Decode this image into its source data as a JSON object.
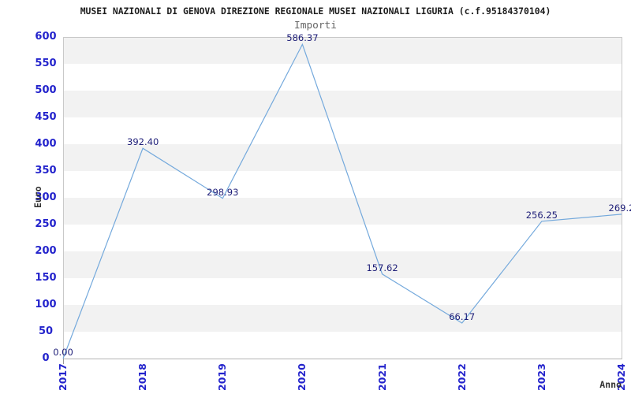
{
  "header": {
    "title": "MUSEI NAZIONALI DI GENOVA DIREZIONE REGIONALE MUSEI NAZIONALI LIGURIA (c.f.95184370104)",
    "subtitle": "Importi"
  },
  "chart_data": {
    "type": "line",
    "title": "Importi",
    "xlabel": "Anno",
    "ylabel": "Euro",
    "categories": [
      "2017",
      "2018",
      "2019",
      "2020",
      "2021",
      "2022",
      "2023",
      "2024"
    ],
    "series": [
      {
        "name": "Importi",
        "values": [
          0.0,
          392.4,
          298.93,
          586.37,
          157.62,
          66.17,
          256.25,
          269.2
        ],
        "point_labels": [
          "0.00",
          "392.40",
          "298.93",
          "586.37",
          "157.62",
          "66.17",
          "256.25",
          "269.2"
        ]
      }
    ],
    "ylim": [
      0,
      600
    ],
    "ytick_step": 50,
    "yticks": [
      0,
      50,
      100,
      150,
      200,
      250,
      300,
      350,
      400,
      450,
      500,
      550,
      600
    ],
    "grid": "alternating-horizontal-bands",
    "legend": "none",
    "colors": {
      "line": "#74a9dc",
      "band": "#f2f2f2",
      "plot_border": "#c9c9c9",
      "tick_label": "#2323cc",
      "point_label": "#1e1e78",
      "title": "#1c1c1c",
      "subtitle": "#666666",
      "axis_title": "#333333"
    }
  }
}
